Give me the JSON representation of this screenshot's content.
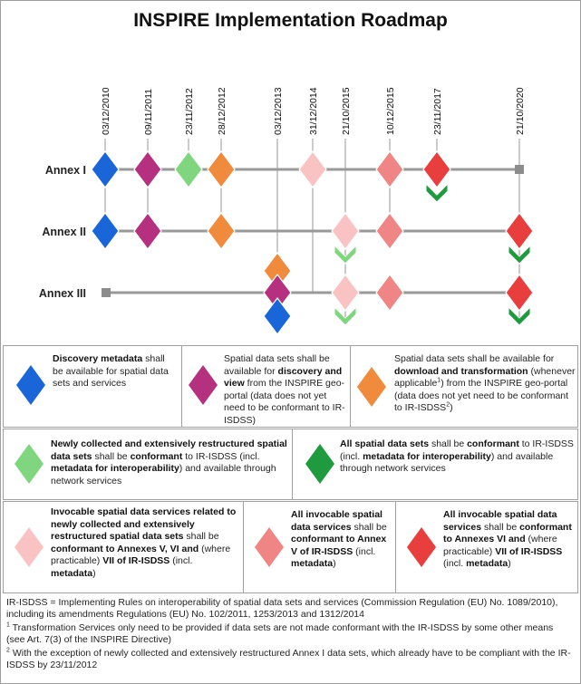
{
  "title": "INSPIRE Implementation Roadmap",
  "dates": [
    "03/12/2010",
    "09/11/2011",
    "23/11/2012",
    "28/12/2012",
    "03/12/2013",
    "31/12/2014",
    "21/10/2015",
    "10/12/2015",
    "23/11/2017",
    "21/10/2020"
  ],
  "annexes": [
    "Annex I",
    "Annex II",
    "Annex III"
  ],
  "colors": {
    "discovery": "#1a66d9",
    "view": "#b5307f",
    "download": "#f08a3c",
    "new_conformant": "#7fd67f",
    "all_conformant": "#1f9a3e",
    "services_new": "#f9c3c3",
    "services_v": "#f08585",
    "services_vi": "#e83e3e",
    "timeline": "#999999"
  },
  "milestones": [
    {
      "annex": 0,
      "date": 0,
      "type": "discovery"
    },
    {
      "annex": 0,
      "date": 1,
      "type": "view"
    },
    {
      "annex": 0,
      "date": 2,
      "type": "new_conformant"
    },
    {
      "annex": 0,
      "date": 3,
      "type": "download"
    },
    {
      "annex": 0,
      "date": 5,
      "type": "services_new"
    },
    {
      "annex": 0,
      "date": 7,
      "type": "services_v"
    },
    {
      "annex": 0,
      "date": 8,
      "type": "services_vi"
    },
    {
      "annex": 0,
      "date": 8,
      "type": "all_conformant",
      "stack": "check"
    },
    {
      "annex": 1,
      "date": 0,
      "type": "discovery"
    },
    {
      "annex": 1,
      "date": 1,
      "type": "view"
    },
    {
      "annex": 1,
      "date": 3,
      "type": "download"
    },
    {
      "annex": 1,
      "date": 6,
      "type": "services_new"
    },
    {
      "annex": 1,
      "date": 6,
      "type": "new_conformant",
      "stack": "check"
    },
    {
      "annex": 1,
      "date": 7,
      "type": "services_v"
    },
    {
      "annex": 1,
      "date": 9,
      "type": "services_vi"
    },
    {
      "annex": 1,
      "date": 9,
      "type": "all_conformant",
      "stack": "check"
    },
    {
      "annex": 2,
      "date": 4,
      "type": "download",
      "stack": "above"
    },
    {
      "annex": 2,
      "date": 4,
      "type": "view"
    },
    {
      "annex": 2,
      "date": 4,
      "type": "discovery",
      "stack": "below"
    },
    {
      "annex": 2,
      "date": 6,
      "type": "services_new"
    },
    {
      "annex": 2,
      "date": 6,
      "type": "new_conformant",
      "stack": "check"
    },
    {
      "annex": 2,
      "date": 7,
      "type": "services_v"
    },
    {
      "annex": 2,
      "date": 9,
      "type": "services_vi"
    },
    {
      "annex": 2,
      "date": 9,
      "type": "all_conformant",
      "stack": "check"
    }
  ],
  "legend": {
    "discovery": {
      "bold": "Discovery metadata",
      "text": " shall be available for spatial data sets and services"
    },
    "view": {
      "pre": "Spatial data sets shall be available for ",
      "bold": "discovery and view",
      "post": " from the INSPIRE geo-portal (data does not yet need to be conformant to IR-ISDSS)"
    },
    "download": {
      "pre": "Spatial data sets shall be available for ",
      "bold": "download and transformation",
      "post1": " (whenever applicable",
      "sup1": "1",
      "post2": ") from the INSPIRE geo-portal (data does not yet need to be conformant to IR-ISDSS",
      "sup2": "2",
      "post3": ")"
    },
    "new_conformant": {
      "bold1": "Newly collected and extensively restructured spatial data sets",
      "mid1": " shall be ",
      "bold2": "conformant",
      "mid2": " to IR-ISDSS (incl. ",
      "bold3": "metadata for interoperability",
      "end": ") and available through network services"
    },
    "all_conformant": {
      "bold1": "All spatial data sets",
      "mid1": " shall be ",
      "bold2": "conformant",
      "mid2": " to IR-ISDSS (incl. ",
      "bold3": "metadata for interoperability",
      "end": ") and available through network services"
    },
    "services_new": {
      "bold1": "Invocable spatial data services related to newly collected and extensively restructured spatial data sets",
      "mid1": " shall be ",
      "bold2": "conformant to Annexes V, VI and",
      "mid2": " (where practicable) ",
      "bold3": "VII of IR-ISDSS",
      "mid3": " (incl. ",
      "bold4": "metadata",
      "end": ")"
    },
    "services_v": {
      "bold1": "All invocable spatial data services",
      "mid1": " shall be ",
      "bold2": "conformant to Annex V of IR-ISDSS",
      "mid2": " (incl. ",
      "bold3": "metadata",
      "end": ")"
    },
    "services_vi": {
      "bold1": "All invocable spatial data services",
      "mid1": " shall be ",
      "bold2": "conformant to Annexes VI and",
      "mid2": " (where practicable) ",
      "bold3": "VII of IR-ISDSS",
      "mid3": " (incl. ",
      "bold4": "metadata",
      "end": ")"
    }
  },
  "footnotes": {
    "main": "IR-ISDSS = Implementing Rules on interoperability of spatial data sets and services (Commission Regulation (EU) No. 1089/2010), including its amendments Regulations (EU) No. 102/2011, 1253/2013 and 1312/2014",
    "n1_mark": "1",
    "n1": " Transformation Services only need to be provided if data sets are not made conformant with the IR-ISDSS by some other means (see Art. 7(3) of the INSPIRE Directive)",
    "n2_mark": "2",
    "n2": " With the exception of newly collected and extensively restructured Annex I data sets, which already have to be compliant with the IR-ISDSS by 23/11/2012"
  }
}
